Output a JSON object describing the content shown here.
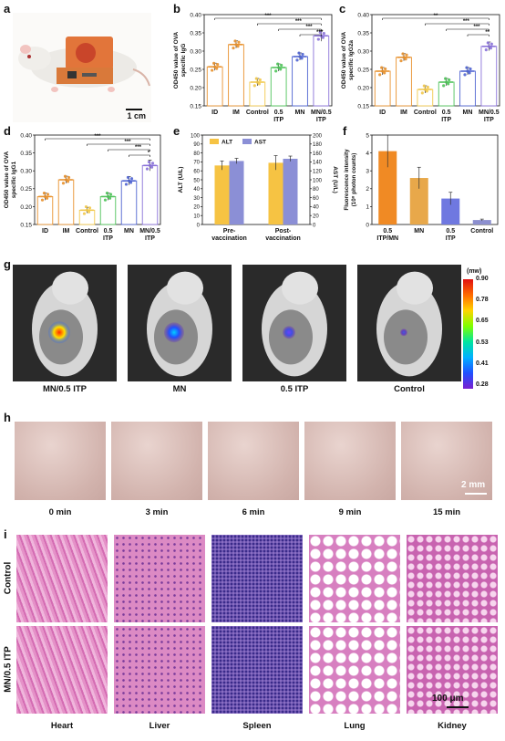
{
  "panels": {
    "a": {
      "letter": "a",
      "scale_bar": "1 cm"
    },
    "b": {
      "letter": "b"
    },
    "c": {
      "letter": "c"
    },
    "d": {
      "letter": "d"
    },
    "e": {
      "letter": "e"
    },
    "f": {
      "letter": "f"
    },
    "g": {
      "letter": "g",
      "labels": [
        "MN/0.5 ITP",
        "MN",
        "0.5 ITP",
        "Control"
      ],
      "colorbar_unit": "(mw)",
      "colorbar_ticks": [
        "0.90",
        "0.78",
        "0.65",
        "0.53",
        "0.41",
        "0.28"
      ]
    },
    "h": {
      "letter": "h",
      "times": [
        "0 min",
        "3 min",
        "6 min",
        "9 min",
        "15 min"
      ],
      "scale_bar": "2 mm"
    },
    "i": {
      "letter": "i",
      "rows": [
        "Control",
        "MN/0.5 ITP"
      ],
      "cols": [
        "Heart",
        "Liver",
        "Spleen",
        "Lung",
        "Kidney"
      ],
      "scale_bar": "100 μm"
    }
  },
  "chart_data": [
    {
      "id": "b",
      "type": "bar",
      "ylabel_lines": [
        "OD450 value of OVA",
        "specific IgG"
      ],
      "categories": [
        "ID",
        "IM",
        "Control",
        "0.5 ITP",
        "MN",
        "MN/0.5 ITP"
      ],
      "values": [
        0.257,
        0.318,
        0.215,
        0.255,
        0.285,
        0.342
      ],
      "errors": [
        0.01,
        0.01,
        0.01,
        0.01,
        0.01,
        0.015
      ],
      "colors": [
        "#e8912d",
        "#e8912d",
        "#f2c94c",
        "#4fc35a",
        "#4f64d1",
        "#8a72d8"
      ],
      "ylim": [
        0.15,
        0.4
      ],
      "yticks": [
        "0.15",
        "0.20",
        "0.25",
        "0.30",
        "0.35",
        "0.40"
      ],
      "significance": [
        "***",
        "***",
        "***",
        "***"
      ]
    },
    {
      "id": "c",
      "type": "bar",
      "ylabel_lines": [
        "OD450 value of OVA",
        "specific IgG2a"
      ],
      "categories": [
        "ID",
        "IM",
        "Control",
        "0.5 ITP",
        "MN",
        "MN/0.5 ITP"
      ],
      "values": [
        0.245,
        0.283,
        0.195,
        0.215,
        0.245,
        0.313
      ],
      "errors": [
        0.01,
        0.01,
        0.01,
        0.01,
        0.01,
        0.012
      ],
      "colors": [
        "#e8912d",
        "#e8912d",
        "#f2c94c",
        "#4fc35a",
        "#4f64d1",
        "#8a72d8"
      ],
      "ylim": [
        0.15,
        0.4
      ],
      "yticks": [
        "0.15",
        "0.20",
        "0.25",
        "0.30",
        "0.35",
        "0.40"
      ],
      "significance": [
        "**",
        "***",
        "***",
        "**"
      ]
    },
    {
      "id": "d",
      "type": "bar",
      "ylabel_lines": [
        "OD450 value of OVA",
        "specific IgG1"
      ],
      "categories": [
        "ID",
        "IM",
        "Control",
        "0.5 ITP",
        "MN",
        "MN/0.5 ITP"
      ],
      "values": [
        0.228,
        0.275,
        0.19,
        0.228,
        0.272,
        0.315
      ],
      "errors": [
        0.01,
        0.01,
        0.008,
        0.01,
        0.012,
        0.015
      ],
      "colors": [
        "#e8912d",
        "#e8912d",
        "#f2c94c",
        "#4fc35a",
        "#4f64d1",
        "#8a72d8"
      ],
      "ylim": [
        0.15,
        0.4
      ],
      "yticks": [
        "0.15",
        "0.20",
        "0.25",
        "0.30",
        "0.35",
        "0.40"
      ],
      "significance": [
        "***",
        "***",
        "***",
        "*"
      ]
    },
    {
      "id": "e",
      "type": "bar",
      "ylabel_left": "ALT (U/L)",
      "ylabel_right": "AST (U/L)",
      "categories": [
        "Pre-vaccination",
        "Post-vaccination"
      ],
      "series": [
        {
          "name": "ALT",
          "values": [
            66,
            69
          ],
          "errors": [
            5,
            8
          ],
          "color": "#f6c343"
        },
        {
          "name": "AST",
          "values": [
            142,
            147
          ],
          "errors": [
            6,
            6
          ],
          "color": "#8b8fd6"
        }
      ],
      "ylim_left": [
        0,
        100
      ],
      "ylim_right": [
        0,
        200
      ],
      "yticks_left": [
        "0",
        "10",
        "20",
        "30",
        "40",
        "50",
        "60",
        "70",
        "80",
        "90",
        "100"
      ],
      "yticks_right": [
        "0",
        "20",
        "40",
        "60",
        "80",
        "100",
        "120",
        "140",
        "160",
        "180",
        "200"
      ]
    },
    {
      "id": "f",
      "type": "bar",
      "ylabel_lines": [
        "Fluorescence intensity",
        "(10⁸ photon counts)"
      ],
      "categories": [
        "0.5 ITP/MN",
        "MN",
        "0.5 ITP",
        "Control"
      ],
      "values": [
        4.1,
        2.6,
        1.45,
        0.25
      ],
      "errors": [
        0.9,
        0.6,
        0.35,
        0.05
      ],
      "colors": [
        "#f08a24",
        "#e8a84a",
        "#6f78e0",
        "#8c8fcf"
      ],
      "ylim": [
        0,
        5
      ],
      "yticks": [
        "0",
        "1",
        "2",
        "3",
        "4",
        "5"
      ]
    }
  ]
}
